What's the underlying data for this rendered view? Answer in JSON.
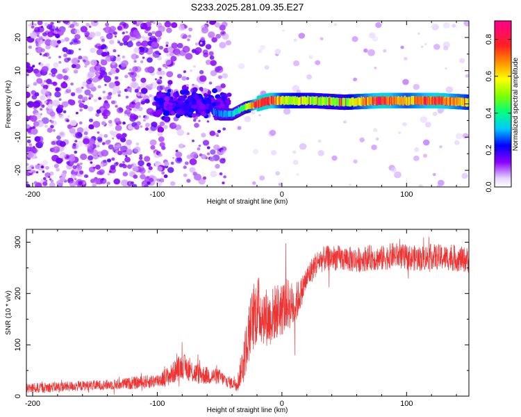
{
  "title": "S233.2025.281.09.35.E27",
  "chart_data": [
    {
      "type": "heatmap",
      "xlabel": "Height of straight line (km)",
      "ylabel": "Frequency (Hz)",
      "xlim": [
        -205,
        150
      ],
      "ylim": [
        -25,
        25
      ],
      "xticks": [
        -200,
        -100,
        0,
        100
      ],
      "yticks": [
        -20,
        -10,
        0,
        10,
        20
      ],
      "description_points": {
        "x": [
          -200,
          -150,
          -100,
          -75,
          -50,
          -40,
          -30,
          -20,
          -10,
          0,
          25,
          50,
          80,
          100,
          125,
          150
        ],
        "peak_frequency_hz": [
          0,
          0,
          0,
          0,
          -3,
          -3,
          -1,
          0,
          1,
          1,
          1,
          0.5,
          1,
          1,
          1,
          0.5
        ],
        "peak_amplitude": [
          0.25,
          0.25,
          0.3,
          0.3,
          0.25,
          0.3,
          0.45,
          0.85,
          0.85,
          0.6,
          0.5,
          0.5,
          0.85,
          0.65,
          0.85,
          0.6
        ]
      },
      "colorbar": {
        "label": "Normalized spectral amplitude",
        "range": [
          0.0,
          0.9
        ],
        "ticks": [
          0.0,
          0.2,
          0.4,
          0.6,
          0.8
        ]
      }
    },
    {
      "type": "line",
      "xlabel": "Height of straight line (km)",
      "ylabel": "SNR (10 * v/v)",
      "xlim": [
        -205,
        150
      ],
      "ylim": [
        0,
        325
      ],
      "xticks": [
        -200,
        -100,
        0,
        100
      ],
      "yticks": [
        0,
        100,
        200,
        300
      ],
      "color": "#ee3333",
      "x": [
        -205,
        -180,
        -160,
        -140,
        -120,
        -100,
        -90,
        -80,
        -70,
        -60,
        -50,
        -45,
        -40,
        -35,
        -30,
        -25,
        -20,
        -15,
        -10,
        -5,
        0,
        5,
        10,
        15,
        20,
        25,
        30,
        40,
        50,
        60,
        70,
        80,
        90,
        100,
        110,
        120,
        130,
        140,
        150
      ],
      "y": [
        15,
        18,
        20,
        22,
        25,
        30,
        40,
        60,
        45,
        40,
        38,
        30,
        25,
        30,
        80,
        140,
        170,
        160,
        150,
        165,
        170,
        180,
        175,
        200,
        230,
        250,
        265,
        270,
        268,
        265,
        270,
        268,
        275,
        270,
        268,
        272,
        270,
        268,
        265
      ],
      "noise_amplitude": [
        10,
        10,
        10,
        10,
        12,
        14,
        20,
        25,
        22,
        18,
        15,
        12,
        12,
        20,
        45,
        60,
        70,
        60,
        55,
        55,
        55,
        50,
        45,
        30,
        25,
        25,
        25,
        25,
        25,
        25,
        25,
        25,
        25,
        25,
        25,
        25,
        25,
        25,
        25
      ]
    }
  ]
}
